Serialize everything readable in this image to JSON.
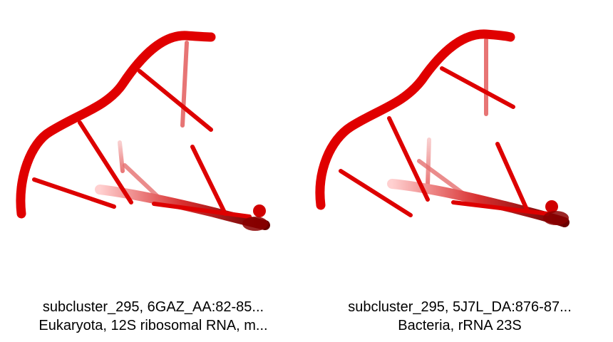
{
  "panels": [
    {
      "caption_line1": "subcluster_295, 6GAZ_AA:82-85...",
      "caption_line2": "Eukaryota, 12S ribosomal RNA, m..."
    },
    {
      "caption_line1": "subcluster_295, 5J7L_DA:876-87...",
      "caption_line2": "Bacteria, rRNA 23S"
    }
  ],
  "colors": {
    "backbone": "#e00000",
    "background": "#ffffff",
    "caption_text": "#000000"
  }
}
